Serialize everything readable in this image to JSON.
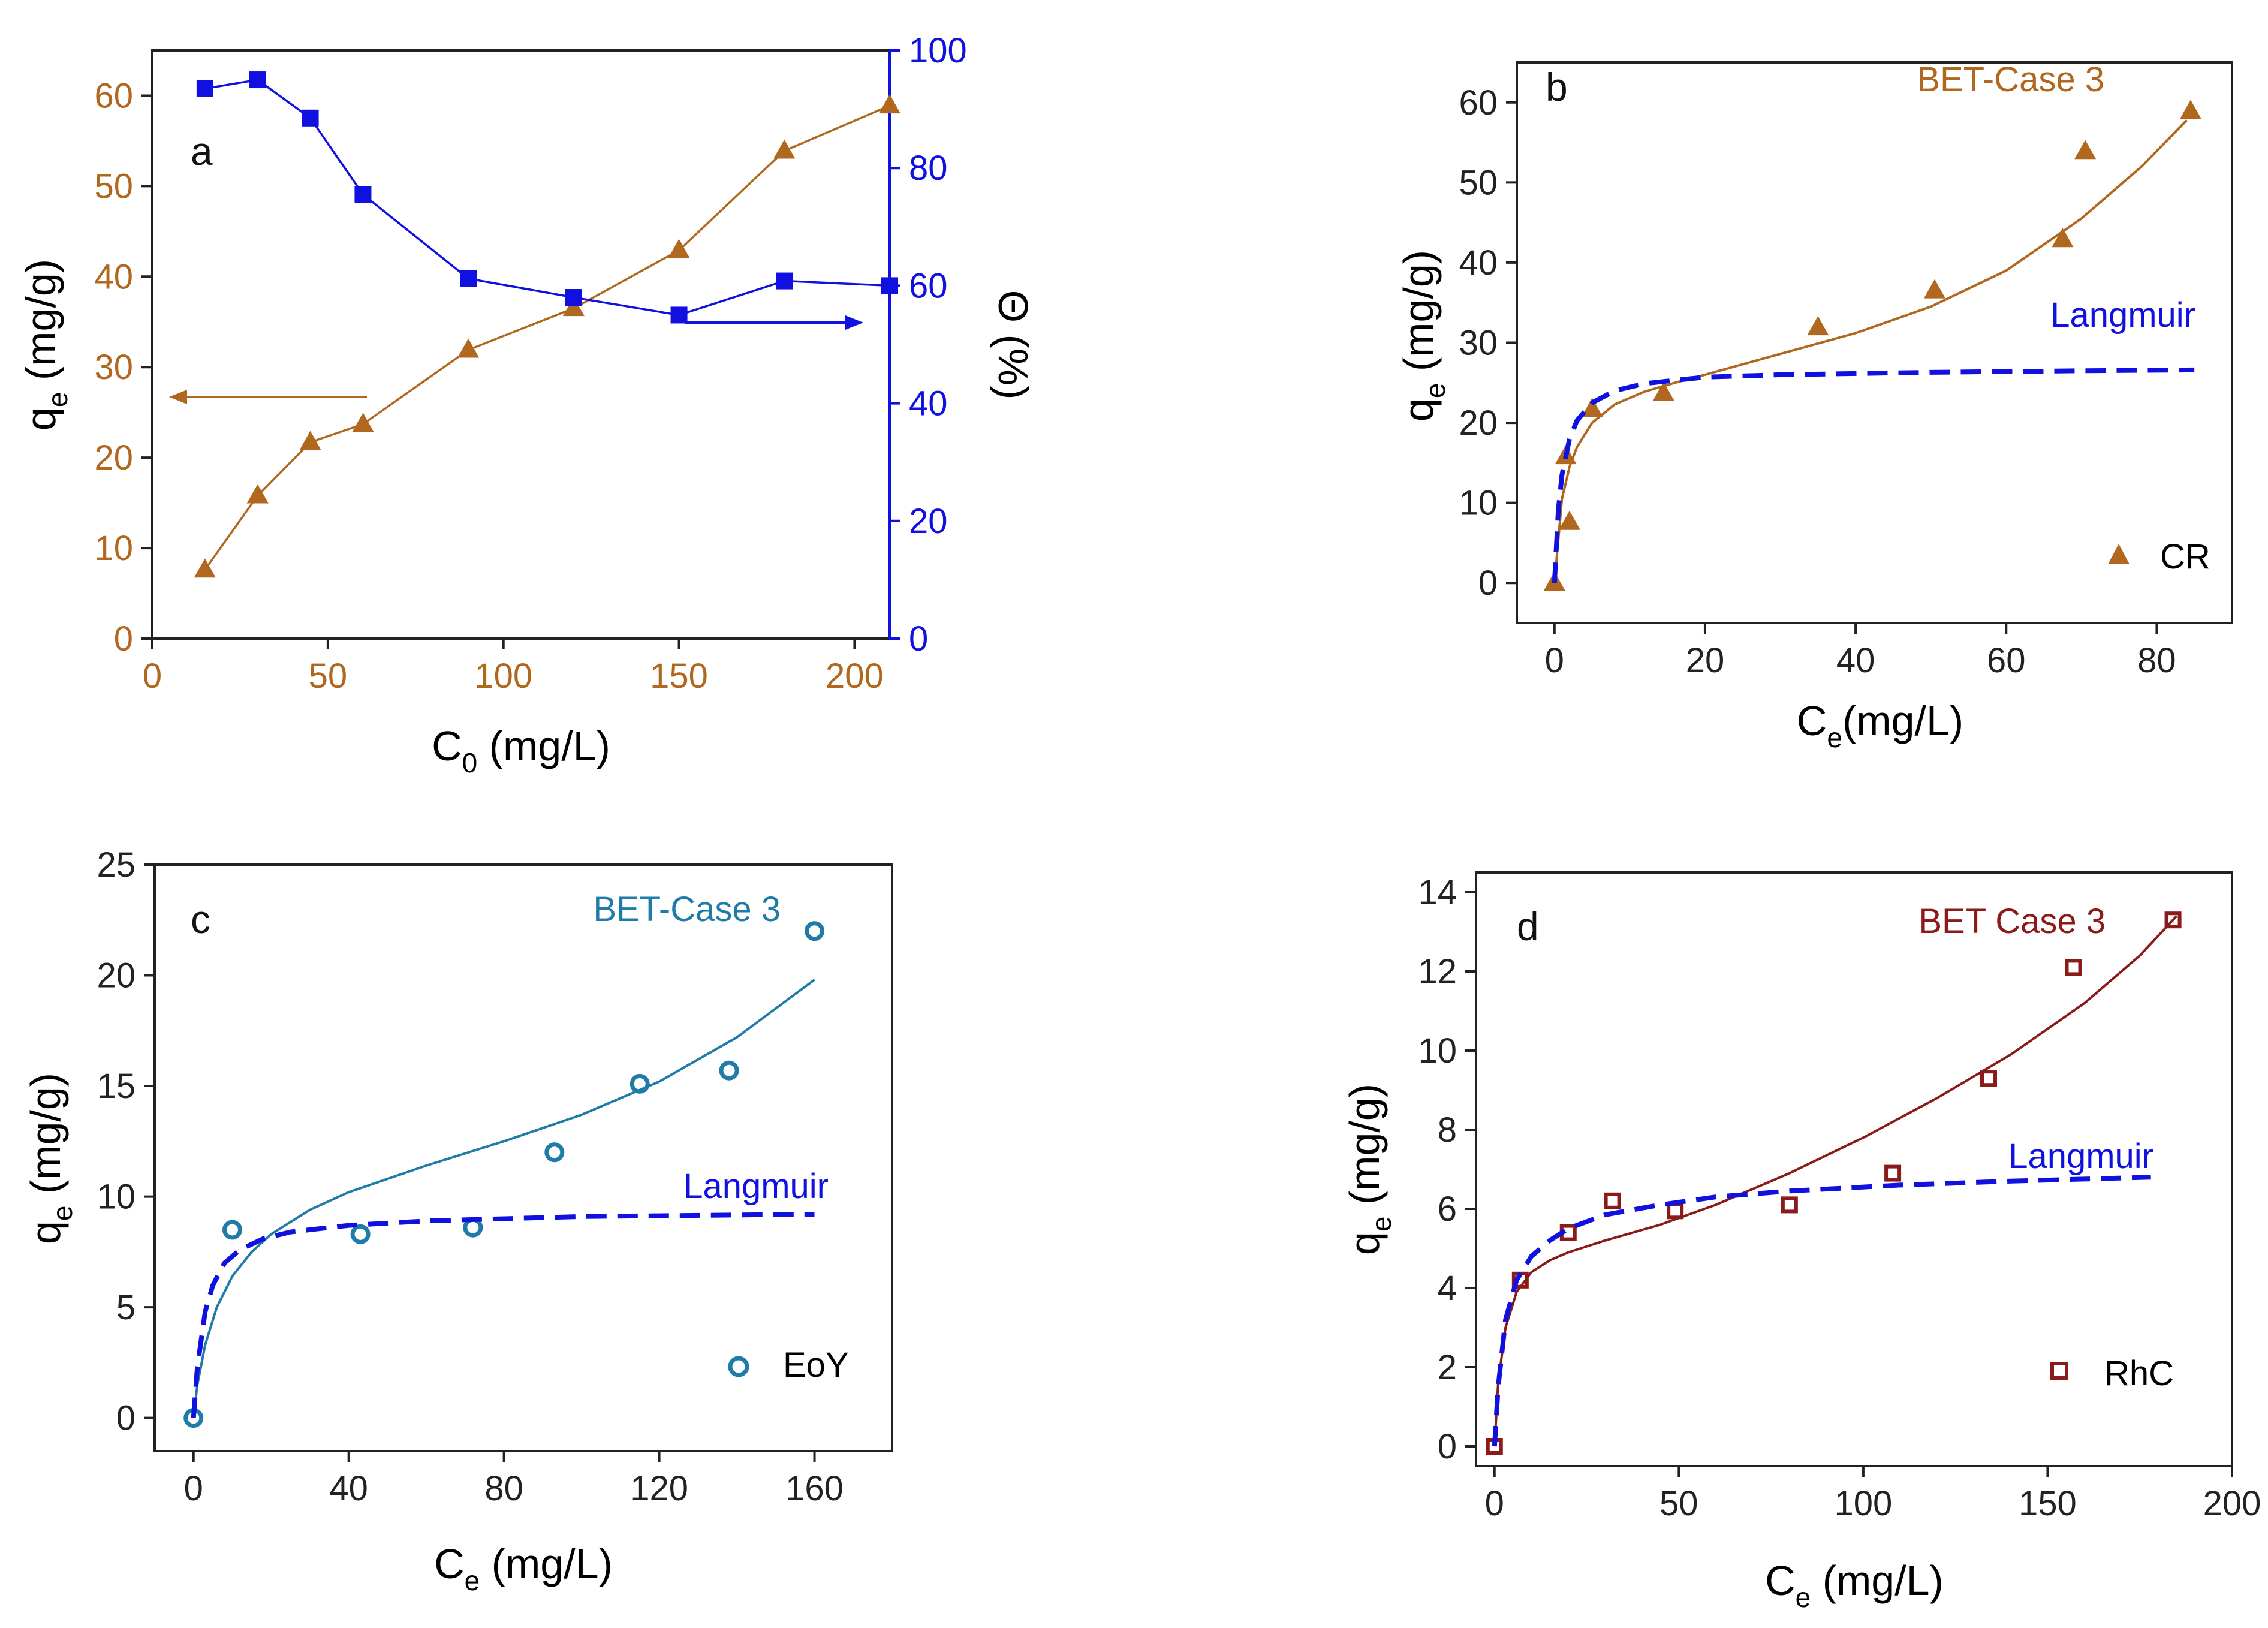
{
  "colors": {
    "brown": "#b0671e",
    "blue": "#1010e0",
    "teal": "#1f7ca8",
    "maroon": "#8b1a1a",
    "axis": "#222222"
  },
  "chart_data": [
    {
      "panel": "a",
      "type": "line",
      "xlabel": "C",
      "xlabel_sub": "0",
      "xlabel_unit": " (mg/L)",
      "ylabel": "q",
      "ylabel_sub": "e",
      "ylabel_unit": " (mg/g)",
      "y2label": "Θ (%)",
      "xlim": [
        0,
        210
      ],
      "ylim": [
        0,
        65
      ],
      "y2lim": [
        0,
        100
      ],
      "xticks": [
        "0",
        "50",
        "100",
        "150",
        "200"
      ],
      "yticks": [
        "0",
        "10",
        "20",
        "30",
        "40",
        "50",
        "60"
      ],
      "y2ticks": [
        "0",
        "20",
        "40",
        "60",
        "80",
        "100"
      ],
      "series": [
        {
          "name": "qe",
          "axis": "left",
          "marker": "triangle",
          "x": [
            15,
            30,
            45,
            60,
            90,
            120,
            150,
            180,
            210
          ],
          "y": [
            7.6,
            15.8,
            21.7,
            23.7,
            31.9,
            36.5,
            42.9,
            53.9,
            58.9
          ]
        },
        {
          "name": "Θ",
          "axis": "right",
          "marker": "square",
          "x": [
            15,
            30,
            45,
            60,
            90,
            120,
            150,
            180,
            210
          ],
          "y": [
            93.5,
            95.0,
            88.5,
            75.5,
            61.2,
            58.0,
            55.0,
            60.8,
            60.0
          ]
        }
      ],
      "annotations": [
        "left arrow to qe axis",
        "right arrow to Θ axis"
      ]
    },
    {
      "panel": "b",
      "type": "scatter",
      "xlabel": "C",
      "xlabel_sub": "e",
      "xlabel_unit": "(mg/L)",
      "ylabel": "q",
      "ylabel_sub": "e",
      "ylabel_unit": " (mg/g)",
      "xlim": [
        -5,
        90
      ],
      "ylim": [
        -5,
        65
      ],
      "xticks": [
        "0",
        "20",
        "40",
        "60",
        "80"
      ],
      "yticks": [
        "0",
        "10",
        "20",
        "30",
        "40",
        "50",
        "60"
      ],
      "legend": "CR",
      "fit_labels": [
        "BET-Case 3",
        "Langmuir"
      ],
      "series": [
        {
          "name": "CR",
          "marker": "triangle",
          "x": [
            0,
            1.5,
            2,
            5,
            14.5,
            35,
            50.5,
            67.5,
            70.5,
            84.5
          ],
          "y": [
            0,
            15.8,
            7.6,
            21.7,
            23.7,
            31.9,
            36.5,
            42.9,
            53.9,
            58.9
          ]
        },
        {
          "name": "BET-Case 3",
          "line": "solid",
          "x": [
            0,
            1,
            2,
            3,
            5,
            8,
            12,
            16,
            20,
            30,
            40,
            50,
            60,
            70,
            78,
            84
          ],
          "y": [
            0,
            10.5,
            14.5,
            17,
            20,
            22.3,
            23.9,
            25,
            26,
            28.6,
            31.2,
            34.5,
            39,
            45.5,
            52,
            57.8
          ]
        },
        {
          "name": "Langmuir",
          "line": "dashed",
          "x": [
            0,
            0.5,
            1,
            2,
            3,
            5,
            8,
            12,
            20,
            30,
            50,
            70,
            85
          ],
          "y": [
            0,
            9,
            13.5,
            18,
            20.3,
            22.5,
            24,
            24.9,
            25.7,
            26,
            26.3,
            26.5,
            26.6
          ]
        }
      ]
    },
    {
      "panel": "c",
      "type": "scatter",
      "xlabel": "C",
      "xlabel_sub": "e",
      "xlabel_unit": " (mg/L)",
      "ylabel": "q",
      "ylabel_sub": "e",
      "ylabel_unit": " (mg/g)",
      "xlim": [
        -10,
        180
      ],
      "ylim": [
        -1.5,
        25
      ],
      "xticks": [
        "0",
        "40",
        "80",
        "120",
        "160"
      ],
      "yticks": [
        "0",
        "5",
        "10",
        "15",
        "20",
        "25"
      ],
      "legend": "EoY",
      "fit_labels": [
        "BET-Case 3",
        "Langmuir"
      ],
      "series": [
        {
          "name": "EoY",
          "marker": "circle",
          "x": [
            0,
            10,
            43,
            72,
            93,
            115,
            138,
            160
          ],
          "y": [
            0,
            8.5,
            8.3,
            8.6,
            12.0,
            15.1,
            15.7,
            22.0
          ]
        },
        {
          "name": "BET-Case 3",
          "line": "solid",
          "x": [
            0,
            1,
            3,
            6,
            10,
            15,
            20,
            30,
            40,
            60,
            80,
            100,
            120,
            140,
            160
          ],
          "y": [
            0,
            1.5,
            3.3,
            5.0,
            6.4,
            7.5,
            8.3,
            9.4,
            10.2,
            11.4,
            12.5,
            13.7,
            15.2,
            17.2,
            19.8
          ]
        },
        {
          "name": "Langmuir",
          "line": "dashed",
          "x": [
            0,
            1,
            3,
            5,
            8,
            12,
            18,
            25,
            40,
            60,
            100,
            160
          ],
          "y": [
            0,
            2.3,
            4.8,
            6.0,
            7.0,
            7.6,
            8.1,
            8.4,
            8.7,
            8.9,
            9.1,
            9.2
          ]
        }
      ]
    },
    {
      "panel": "d",
      "type": "scatter",
      "xlabel": "C",
      "xlabel_sub": "e",
      "xlabel_unit": " (mg/L)",
      "ylabel": "q",
      "ylabel_sub": "e",
      "ylabel_unit": " (mg/g)",
      "xlim": [
        -5,
        200
      ],
      "ylim": [
        -0.5,
        14.5
      ],
      "xticks": [
        "0",
        "50",
        "100",
        "150",
        "200"
      ],
      "yticks": [
        "0",
        "2",
        "4",
        "6",
        "8",
        "10",
        "12",
        "14"
      ],
      "legend": "RhC",
      "fit_labels": [
        "BET Case 3",
        "Langmuir"
      ],
      "series": [
        {
          "name": "RhC",
          "marker": "square-open",
          "x": [
            0,
            7,
            20,
            32,
            49,
            80,
            108,
            134,
            157,
            184
          ],
          "y": [
            0,
            4.2,
            5.4,
            6.2,
            5.95,
            6.1,
            6.9,
            9.3,
            12.1,
            13.3
          ]
        },
        {
          "name": "BET Case 3",
          "line": "solid",
          "x": [
            0,
            1,
            3,
            6,
            10,
            15,
            20,
            30,
            45,
            60,
            80,
            100,
            120,
            140,
            160,
            175,
            185
          ],
          "y": [
            0,
            1.6,
            3.0,
            3.9,
            4.4,
            4.7,
            4.9,
            5.2,
            5.6,
            6.1,
            6.9,
            7.8,
            8.8,
            9.9,
            11.2,
            12.4,
            13.4
          ]
        },
        {
          "name": "Langmuir",
          "line": "dashed",
          "x": [
            0,
            1,
            3,
            6,
            10,
            15,
            20,
            30,
            45,
            60,
            80,
            110,
            140,
            178
          ],
          "y": [
            0,
            1.5,
            3.2,
            4.2,
            4.8,
            5.2,
            5.5,
            5.85,
            6.1,
            6.3,
            6.45,
            6.6,
            6.7,
            6.8
          ]
        }
      ]
    }
  ]
}
